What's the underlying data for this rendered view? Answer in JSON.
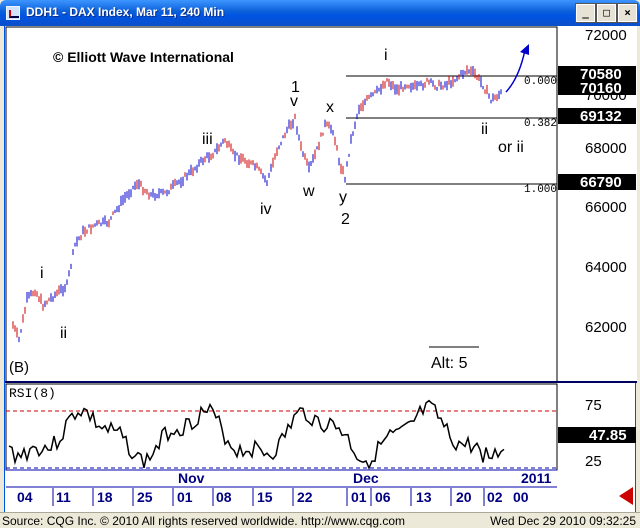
{
  "window": {
    "title": "DDH1 - DAX Index, Mar 11, 240 Min",
    "minimize": "_",
    "maximize": "□",
    "close": "×"
  },
  "chart": {
    "copyright": "© Elliott Wave International",
    "bottom_left_label": "(B)",
    "alt_label": "Alt: 5"
  },
  "price_axis": {
    "ticks": [
      "72000",
      "70000",
      "68000",
      "66000",
      "64000",
      "62000"
    ],
    "tags": [
      "70580",
      "70160",
      "69132",
      "66790"
    ]
  },
  "fib_labels": [
    "0.000",
    "0.382",
    "1.000"
  ],
  "wave_labels": [
    "i",
    "ii",
    "iii",
    "iv",
    "1",
    "v",
    "w",
    "x",
    "y",
    "2",
    "i",
    "ii",
    "or ii"
  ],
  "rsi": {
    "label": "RSI(8)",
    "ticks": [
      "75",
      "25"
    ],
    "current": "47.85"
  },
  "time_axis": {
    "months": [
      "Nov",
      "Dec",
      "2011"
    ],
    "days": [
      "04",
      "11",
      "18",
      "25",
      "01",
      "08",
      "15",
      "22",
      "01",
      "06",
      "13",
      "20",
      "02",
      "00"
    ]
  },
  "status": {
    "source": "Source: CQG Inc. © 2010 All rights reserved worldwide. http://www.cqg.com",
    "datetime": "Wed Dec 29 2010 09:32:25"
  }
}
